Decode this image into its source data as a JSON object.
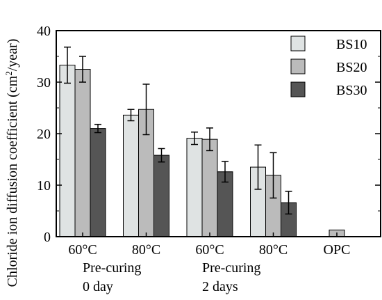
{
  "chart_data": {
    "type": "bar",
    "ylabel": "Chloride ion diffusion coefficient (cm²/year)",
    "ylabel_main": "Chloride ion diffusion coefficient (cm",
    "ylabel_sup": "2",
    "ylabel_tail": "/year)",
    "ylim": [
      0,
      40
    ],
    "yticks": [
      "0",
      "10",
      "20",
      "30",
      "40"
    ],
    "categories": [
      "60°C",
      "80°C",
      "60°C",
      "80°C",
      "OPC"
    ],
    "group_labels": [
      {
        "line1": "Pre-curing",
        "line2": "0 day"
      },
      {
        "line1": "Pre-curing",
        "line2": "2 days"
      }
    ],
    "series": [
      {
        "name": "BS10",
        "color": "#dfe3e3",
        "values": [
          33.3,
          23.6,
          19.1,
          13.5,
          null
        ],
        "err": [
          3.5,
          1.1,
          1.2,
          4.3,
          null
        ]
      },
      {
        "name": "BS20",
        "color": "#bbbbbb",
        "values": [
          32.5,
          24.7,
          18.9,
          11.9,
          1.3
        ],
        "err": [
          2.5,
          4.9,
          2.2,
          4.4,
          null
        ]
      },
      {
        "name": "BS30",
        "color": "#555555",
        "values": [
          21.0,
          15.8,
          12.6,
          6.6,
          null
        ],
        "err": [
          0.8,
          1.3,
          2.0,
          2.2,
          null
        ]
      }
    ],
    "legend_position": "top-right",
    "grid": false
  }
}
